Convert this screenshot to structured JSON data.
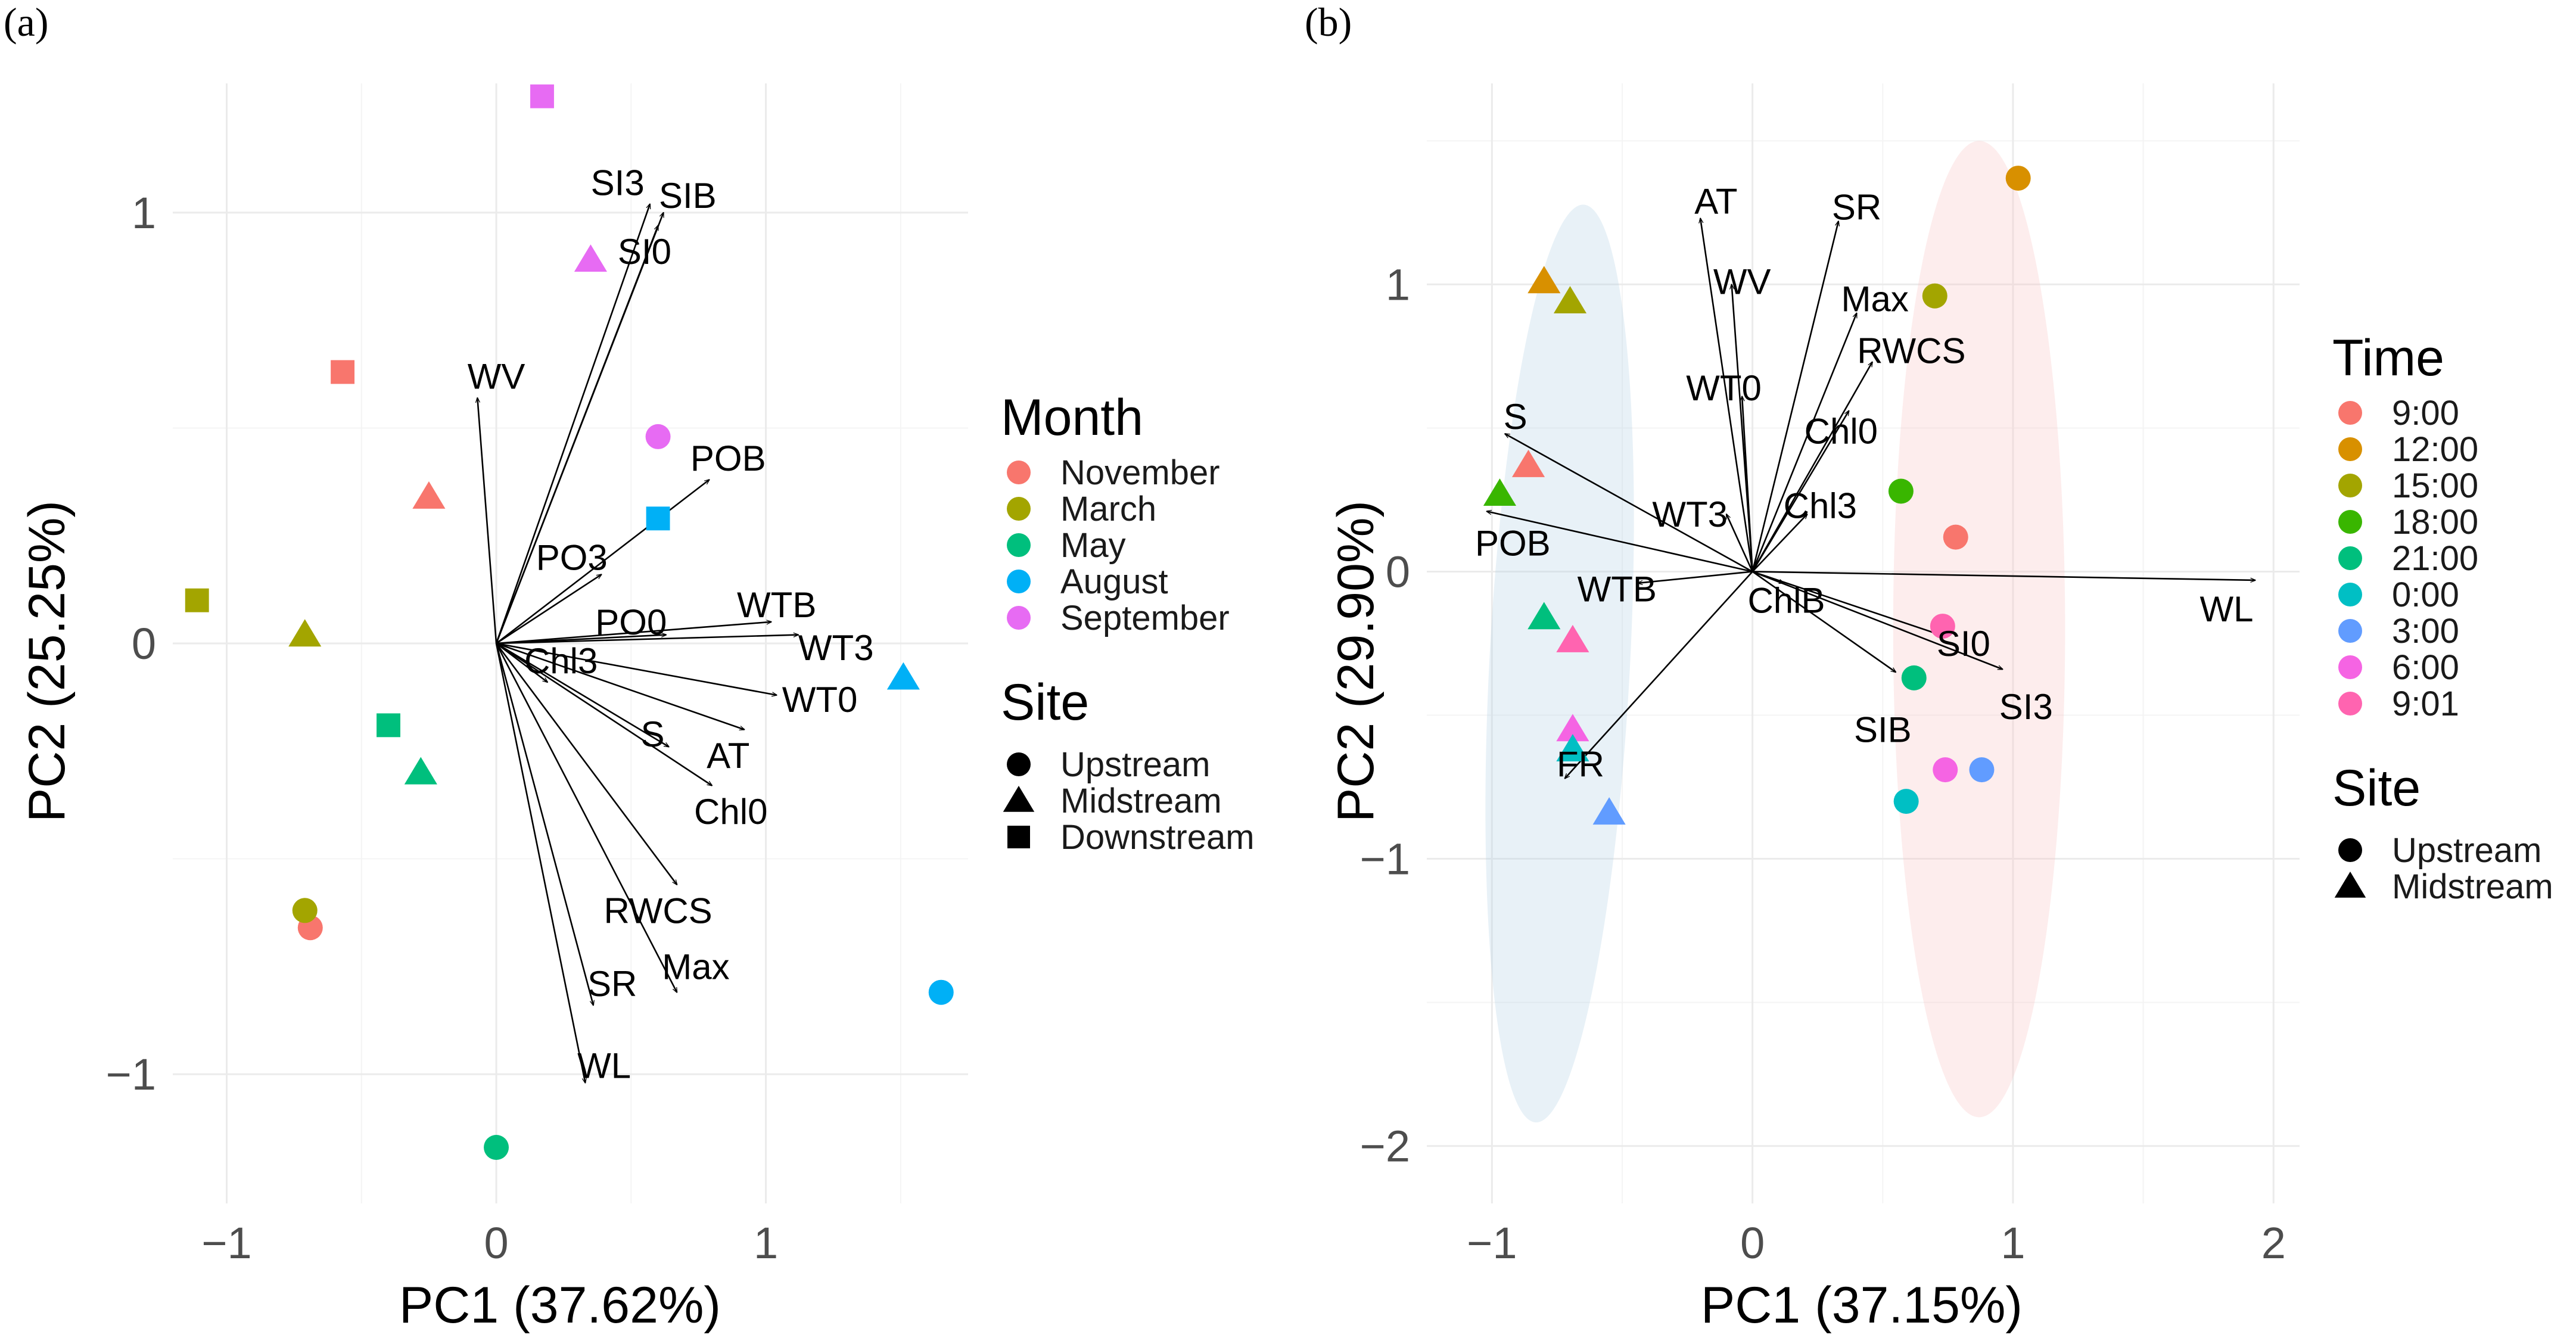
{
  "chart_data": [
    {
      "type": "scatter",
      "subtype": "pca-biplot",
      "panel_label": "(a)",
      "panel_letter": "a",
      "xlabel": "PC1 (37.62%)",
      "ylabel": "PC2 (25.25%)",
      "xlim": [
        -1.2,
        1.75
      ],
      "ylim": [
        -1.3,
        1.3
      ],
      "xticks": [
        -1,
        0,
        1
      ],
      "yticks": [
        -1,
        0,
        1
      ],
      "xtick_labels": [
        "−1",
        "0",
        "1"
      ],
      "ytick_labels": [
        "−1",
        "0",
        "1"
      ],
      "grid": true,
      "legend_placement": "right",
      "color_legend": {
        "title": "Month",
        "items": [
          {
            "name": "November",
            "color": "#F8766D"
          },
          {
            "name": "March",
            "color": "#A3A500"
          },
          {
            "name": "May",
            "color": "#00BF7D"
          },
          {
            "name": "August",
            "color": "#00B0F6"
          },
          {
            "name": "September",
            "color": "#E76BF3"
          }
        ]
      },
      "shape_legend": {
        "title": "Site",
        "items": [
          {
            "name": "Upstream",
            "shape": "circle"
          },
          {
            "name": "Midstream",
            "shape": "triangle"
          },
          {
            "name": "Downstream",
            "shape": "square"
          }
        ]
      },
      "points": [
        {
          "x": 0.17,
          "y": 1.27,
          "color": "September",
          "shape": "square"
        },
        {
          "x": 0.35,
          "y": 0.89,
          "color": "September",
          "shape": "triangle"
        },
        {
          "x": 0.6,
          "y": 0.48,
          "color": "September",
          "shape": "circle"
        },
        {
          "x": -0.57,
          "y": 0.63,
          "color": "November",
          "shape": "square"
        },
        {
          "x": -0.25,
          "y": 0.34,
          "color": "November",
          "shape": "triangle"
        },
        {
          "x": -0.69,
          "y": -0.66,
          "color": "November",
          "shape": "circle"
        },
        {
          "x": -1.11,
          "y": 0.1,
          "color": "March",
          "shape": "square"
        },
        {
          "x": -0.71,
          "y": 0.02,
          "color": "March",
          "shape": "triangle"
        },
        {
          "x": -0.71,
          "y": -0.62,
          "color": "March",
          "shape": "circle"
        },
        {
          "x": -0.4,
          "y": -0.19,
          "color": "May",
          "shape": "square"
        },
        {
          "x": -0.28,
          "y": -0.3,
          "color": "May",
          "shape": "triangle"
        },
        {
          "x": 0.0,
          "y": -1.17,
          "color": "May",
          "shape": "circle"
        },
        {
          "x": 0.6,
          "y": 0.29,
          "color": "August",
          "shape": "square"
        },
        {
          "x": 1.51,
          "y": -0.08,
          "color": "August",
          "shape": "triangle"
        },
        {
          "x": 1.65,
          "y": -0.81,
          "color": "August",
          "shape": "circle"
        }
      ],
      "vectors": [
        {
          "name": "SI3",
          "x": 0.57,
          "y": 1.02,
          "lx": 0.45,
          "ly": 1.07
        },
        {
          "name": "SIB",
          "x": 0.62,
          "y": 1.0,
          "lx": 0.71,
          "ly": 1.04
        },
        {
          "name": "SI0",
          "x": 0.6,
          "y": 0.97,
          "lx": 0.55,
          "ly": 0.91
        },
        {
          "name": "WV",
          "x": -0.07,
          "y": 0.57,
          "lx": 0.0,
          "ly": 0.62
        },
        {
          "name": "POB",
          "x": 0.79,
          "y": 0.38,
          "lx": 0.86,
          "ly": 0.43
        },
        {
          "name": "PO3",
          "x": 0.39,
          "y": 0.16,
          "lx": 0.28,
          "ly": 0.2
        },
        {
          "name": "PO0",
          "x": 0.63,
          "y": 0.02,
          "lx": 0.5,
          "ly": 0.05
        },
        {
          "name": "WTB",
          "x": 1.02,
          "y": 0.05,
          "lx": 1.04,
          "ly": 0.09
        },
        {
          "name": "WT3",
          "x": 1.12,
          "y": 0.02,
          "lx": 1.26,
          "ly": -0.01
        },
        {
          "name": "WT0",
          "x": 1.04,
          "y": -0.12,
          "lx": 1.2,
          "ly": -0.13
        },
        {
          "name": "Chl3",
          "x": 0.19,
          "y": -0.09,
          "lx": 0.24,
          "ly": -0.04
        },
        {
          "name": "S",
          "x": 0.64,
          "y": -0.24,
          "lx": 0.58,
          "ly": -0.21
        },
        {
          "name": "AT",
          "x": 0.92,
          "y": -0.2,
          "lx": 0.86,
          "ly": -0.26
        },
        {
          "name": "Chl0",
          "x": 0.8,
          "y": -0.33,
          "lx": 0.87,
          "ly": -0.39
        },
        {
          "name": "RWCS",
          "x": 0.67,
          "y": -0.56,
          "lx": 0.6,
          "ly": -0.62
        },
        {
          "name": "Max",
          "x": 0.67,
          "y": -0.81,
          "lx": 0.74,
          "ly": -0.75
        },
        {
          "name": "SR",
          "x": 0.36,
          "y": -0.84,
          "lx": 0.43,
          "ly": -0.79
        },
        {
          "name": "WL",
          "x": 0.33,
          "y": -1.02,
          "lx": 0.4,
          "ly": -0.98
        }
      ]
    },
    {
      "type": "scatter",
      "subtype": "pca-biplot",
      "panel_label": "(b)",
      "panel_letter": "b",
      "xlabel": "PC1 (37.15%)",
      "ylabel": "PC2 (29.90%)",
      "xlim": [
        -1.25,
        2.1
      ],
      "ylim": [
        -2.2,
        1.7
      ],
      "xticks": [
        -1,
        0,
        1,
        2
      ],
      "yticks": [
        -2,
        -1,
        0,
        1
      ],
      "xtick_labels": [
        "−1",
        "0",
        "1",
        "2"
      ],
      "ytick_labels": [
        "−2",
        "−1",
        "0",
        "1"
      ],
      "grid": true,
      "legend_placement": "right",
      "ellipses": [
        {
          "cx": -0.74,
          "cy": -0.32,
          "rx": 0.27,
          "ry": 1.6,
          "angle": 3,
          "color": "#B8D6E8"
        },
        {
          "cx": 0.87,
          "cy": -0.2,
          "rx": 0.33,
          "ry": 1.7,
          "angle": 0,
          "color": "#F8C8C8"
        }
      ],
      "color_legend": {
        "title": "Time",
        "items": [
          {
            "name": "9:00",
            "color": "#F8766D"
          },
          {
            "name": "12:00",
            "color": "#D89000"
          },
          {
            "name": "15:00",
            "color": "#A3A500"
          },
          {
            "name": "18:00",
            "color": "#39B600"
          },
          {
            "name": "21:00",
            "color": "#00BF7D"
          },
          {
            "name": "0:00",
            "color": "#00BFC4"
          },
          {
            "name": "3:00",
            "color": "#619CFF"
          },
          {
            "name": "6:00",
            "color": "#F564E3"
          },
          {
            "name": "9:01",
            "color": "#FF64B0"
          }
        ]
      },
      "shape_legend": {
        "title": "Site",
        "items": [
          {
            "name": "Upstream",
            "shape": "circle"
          },
          {
            "name": "Midstream",
            "shape": "triangle"
          }
        ]
      },
      "points": [
        {
          "x": 1.02,
          "y": 1.37,
          "color": "12:00",
          "shape": "circle"
        },
        {
          "x": 0.7,
          "y": 0.96,
          "color": "15:00",
          "shape": "circle"
        },
        {
          "x": 0.57,
          "y": 0.28,
          "color": "18:00",
          "shape": "circle"
        },
        {
          "x": 0.78,
          "y": 0.12,
          "color": "9:00",
          "shape": "circle"
        },
        {
          "x": 0.73,
          "y": -0.19,
          "color": "9:01",
          "shape": "circle"
        },
        {
          "x": 0.62,
          "y": -0.37,
          "color": "21:00",
          "shape": "circle"
        },
        {
          "x": 0.74,
          "y": -0.69,
          "color": "6:00",
          "shape": "circle"
        },
        {
          "x": 0.88,
          "y": -0.69,
          "color": "3:00",
          "shape": "circle"
        },
        {
          "x": 0.59,
          "y": -0.8,
          "color": "0:00",
          "shape": "circle"
        },
        {
          "x": -0.8,
          "y": 1.01,
          "color": "12:00",
          "shape": "triangle"
        },
        {
          "x": -0.7,
          "y": 0.94,
          "color": "15:00",
          "shape": "triangle"
        },
        {
          "x": -0.86,
          "y": 0.37,
          "color": "9:00",
          "shape": "triangle"
        },
        {
          "x": -0.97,
          "y": 0.27,
          "color": "18:00",
          "shape": "triangle"
        },
        {
          "x": -0.8,
          "y": -0.16,
          "color": "21:00",
          "shape": "triangle"
        },
        {
          "x": -0.69,
          "y": -0.24,
          "color": "9:01",
          "shape": "triangle"
        },
        {
          "x": -0.69,
          "y": -0.55,
          "color": "6:00",
          "shape": "triangle"
        },
        {
          "x": -0.69,
          "y": -0.62,
          "color": "0:00",
          "shape": "triangle"
        },
        {
          "x": -0.55,
          "y": -0.84,
          "color": "3:00",
          "shape": "triangle"
        }
      ],
      "vectors": [
        {
          "name": "AT",
          "x": -0.2,
          "y": 1.23,
          "lx": -0.14,
          "ly": 1.29
        },
        {
          "name": "SR",
          "x": 0.33,
          "y": 1.22,
          "lx": 0.4,
          "ly": 1.27
        },
        {
          "name": "WV",
          "x": -0.08,
          "y": 1.0,
          "lx": -0.04,
          "ly": 1.01
        },
        {
          "name": "Max",
          "x": 0.4,
          "y": 0.9,
          "lx": 0.47,
          "ly": 0.95
        },
        {
          "name": "RWCS",
          "x": 0.46,
          "y": 0.73,
          "lx": 0.61,
          "ly": 0.77
        },
        {
          "name": "WT0",
          "x": -0.04,
          "y": 0.61,
          "lx": -0.11,
          "ly": 0.64
        },
        {
          "name": "Chl0",
          "x": 0.37,
          "y": 0.56,
          "lx": 0.34,
          "ly": 0.49
        },
        {
          "name": "S",
          "x": -0.95,
          "y": 0.48,
          "lx": -0.91,
          "ly": 0.54
        },
        {
          "name": "Chl3",
          "x": 0.21,
          "y": 0.2,
          "lx": 0.26,
          "ly": 0.23
        },
        {
          "name": "WT3",
          "x": -0.1,
          "y": 0.2,
          "lx": -0.24,
          "ly": 0.2
        },
        {
          "name": "POB",
          "x": -1.02,
          "y": 0.21,
          "lx": -0.92,
          "ly": 0.1
        },
        {
          "name": "WTB",
          "x": -0.44,
          "y": -0.04,
          "lx": -0.52,
          "ly": -0.06
        },
        {
          "name": "ChlB",
          "x": 0.12,
          "y": -0.04,
          "lx": 0.13,
          "ly": -0.1
        },
        {
          "name": "WL",
          "x": 1.93,
          "y": -0.03,
          "lx": 1.82,
          "ly": -0.13
        },
        {
          "name": "SI0",
          "x": 0.72,
          "y": -0.22,
          "lx": 0.81,
          "ly": -0.25
        },
        {
          "name": "SI3",
          "x": 0.96,
          "y": -0.34,
          "lx": 1.05,
          "ly": -0.47
        },
        {
          "name": "SIB",
          "x": 0.55,
          "y": -0.35,
          "lx": 0.5,
          "ly": -0.55
        },
        {
          "name": "FR",
          "x": -0.72,
          "y": -0.72,
          "lx": -0.66,
          "ly": -0.67
        }
      ]
    }
  ]
}
